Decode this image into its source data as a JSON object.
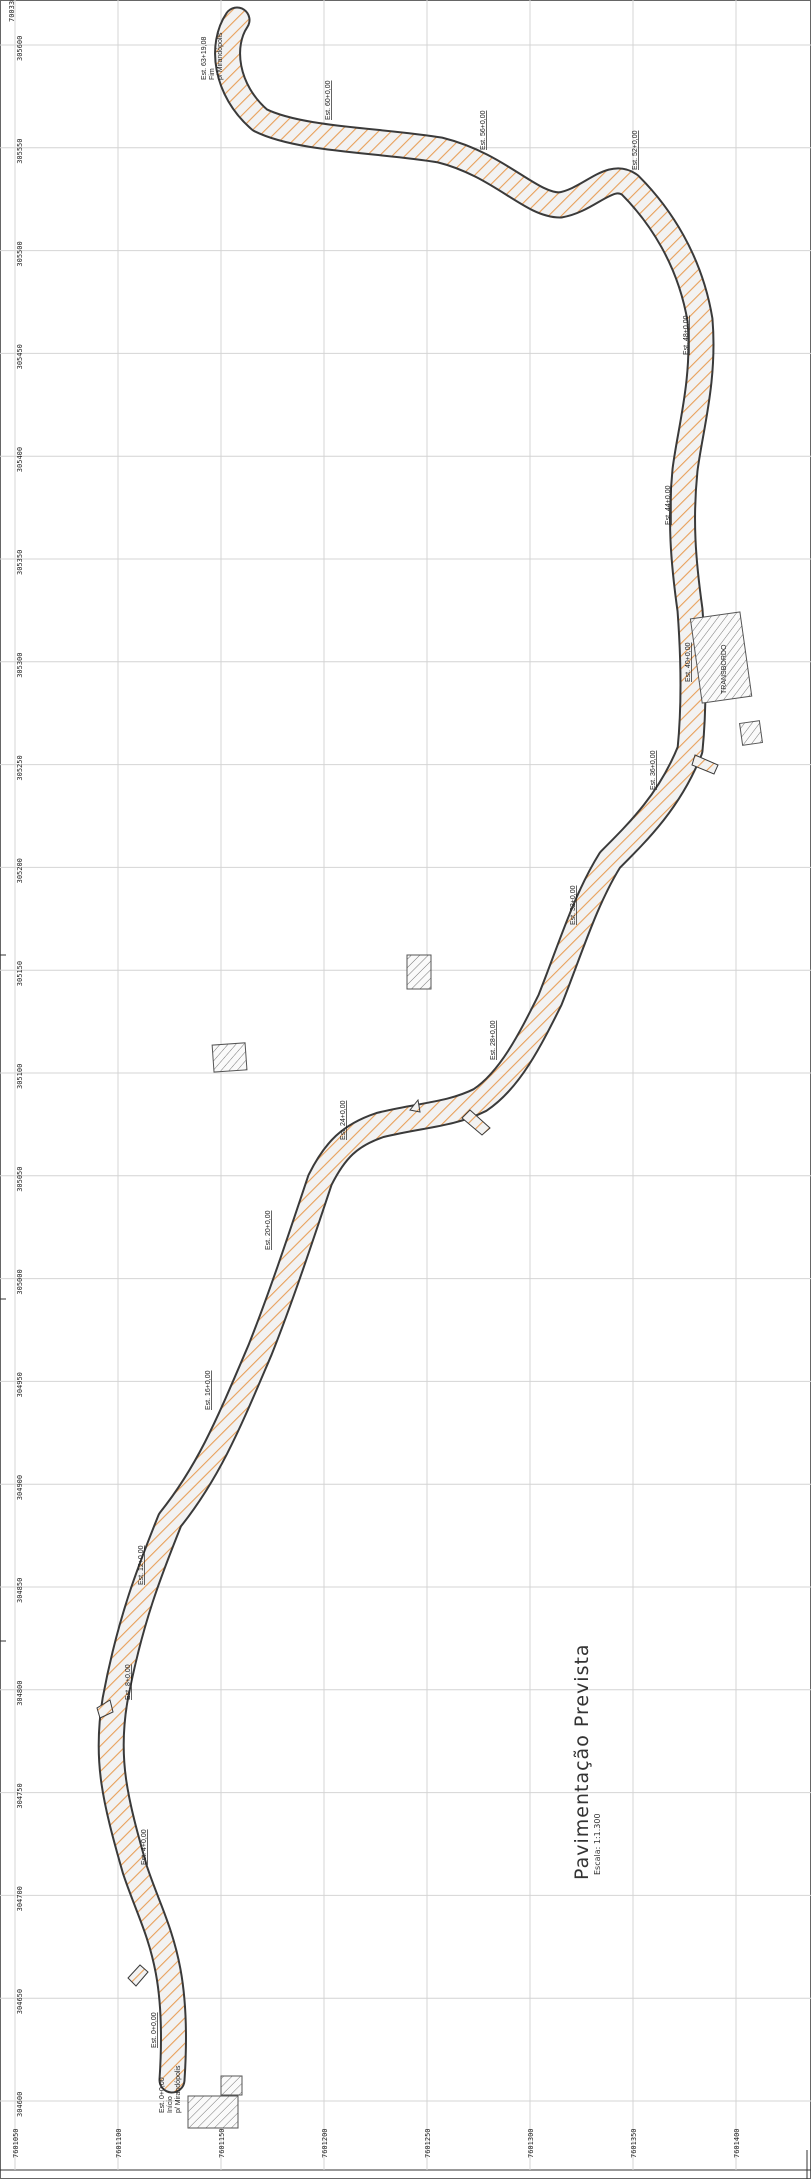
{
  "sheet": {
    "title": "Pavimentação Prevista",
    "scale": "Escala: 1:1.300",
    "top_corner_label": "7003300"
  },
  "grid": {
    "row_labels": [
      "305600",
      "305550",
      "305500",
      "305450",
      "305400",
      "305350",
      "305300",
      "305250",
      "305200",
      "305150",
      "305100",
      "305050",
      "305000",
      "304950",
      "304900",
      "304850",
      "304800",
      "304750",
      "304700",
      "304650",
      "304600"
    ],
    "col_labels": [
      "7601050",
      "7601100",
      "7601150",
      "7601200",
      "7601250",
      "7601300",
      "7601350",
      "7601400"
    ]
  },
  "stations": [
    "Est. 0+0,00",
    "Est. 4+0,00",
    "Est. 8+0,00",
    "Est. 12+0,00",
    "Est. 16+0,00",
    "Est. 20+0,00",
    "Est. 24+0,00",
    "Est. 28+0,00",
    "Est. 32+0,00",
    "Est. 36+0,00",
    "Est. 40+0,00",
    "Est. 44+0,00",
    "Est. 48+0,00",
    "Est. 52+0,00",
    "Est. 56+0,00",
    "Est. 60+0,00",
    "Est. 63+19,08"
  ],
  "start_note": [
    "Est. 0+0,00",
    "Início",
    "p/ Mirandópolis"
  ],
  "end_note": [
    "Est. 63+19,08",
    "Fim",
    "p/ Mirandópolis"
  ],
  "building_label": "TRANSBORDO",
  "colors": {
    "pavement_fill": "#f2f2f2",
    "pavement_hatch": "#e8a05a",
    "road_edge": "#3a3a3a",
    "grid": "#d4d4d4"
  }
}
